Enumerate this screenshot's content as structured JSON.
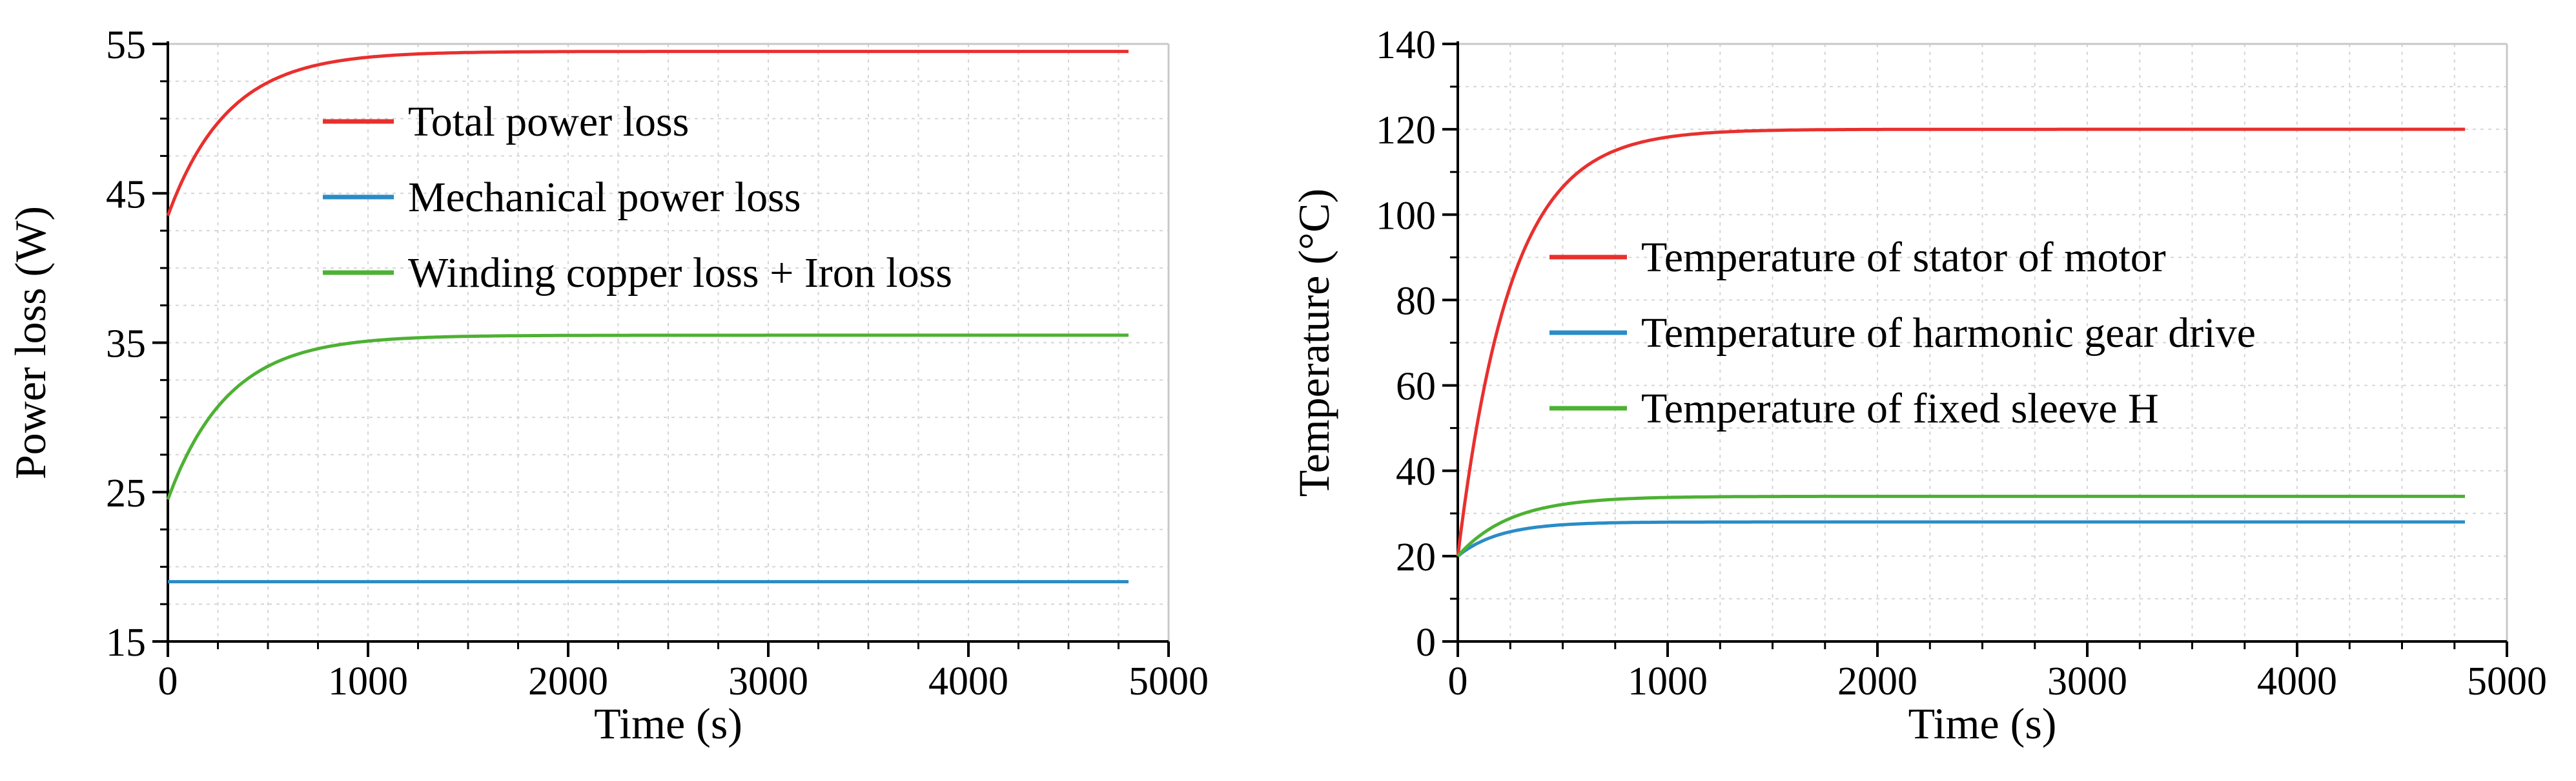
{
  "figure": {
    "panels": 2
  },
  "chart_data": [
    {
      "type": "line",
      "title": "",
      "xlabel": "Time (s)",
      "ylabel": "Power loss (W)",
      "xlim": [
        0,
        5000
      ],
      "ylim": [
        15,
        55
      ],
      "xticks": [
        0,
        1000,
        2000,
        3000,
        4000,
        5000
      ],
      "yticks": [
        15,
        25,
        35,
        45,
        55
      ],
      "x_minor_step": 250,
      "y_minor_step": 2.5,
      "grid": true,
      "legend_position": "upper-middle",
      "series": [
        {
          "name": "Total power loss",
          "color": "#e8302e",
          "model": "exp_rise",
          "x_end": 4800,
          "start": 43.5,
          "end": 54.5,
          "tau": 300
        },
        {
          "name": "Mechanical power loss",
          "color": "#2a8cc6",
          "model": "constant",
          "x_end": 4800,
          "start": 19,
          "end": 19,
          "tau": 1
        },
        {
          "name": "Winding copper loss + Iron loss",
          "color": "#4db133",
          "model": "exp_rise",
          "x_end": 4800,
          "start": 24.5,
          "end": 35.5,
          "tau": 300
        }
      ]
    },
    {
      "type": "line",
      "title": "",
      "xlabel": "Time (s)",
      "ylabel": "Temperature (°C)",
      "xlim": [
        0,
        5000
      ],
      "ylim": [
        0,
        140
      ],
      "xticks": [
        0,
        1000,
        2000,
        3000,
        4000,
        5000
      ],
      "yticks": [
        0,
        20,
        40,
        60,
        80,
        100,
        120,
        140
      ],
      "x_minor_step": 250,
      "y_minor_step": 10,
      "grid": true,
      "legend_position": "middle-right",
      "series": [
        {
          "name": "Temperature of stator of motor",
          "color": "#e8302e",
          "model": "exp_rise",
          "x_end": 4800,
          "start": 20,
          "end": 120,
          "tau": 250
        },
        {
          "name": "Temperature of harmonic gear drive",
          "color": "#2a8cc6",
          "model": "exp_rise",
          "x_end": 4800,
          "start": 20,
          "end": 28,
          "tau": 200
        },
        {
          "name": "Temperature of fixed sleeve H",
          "color": "#4db133",
          "model": "exp_rise",
          "x_end": 4800,
          "start": 20,
          "end": 34,
          "tau": 250
        }
      ]
    }
  ]
}
